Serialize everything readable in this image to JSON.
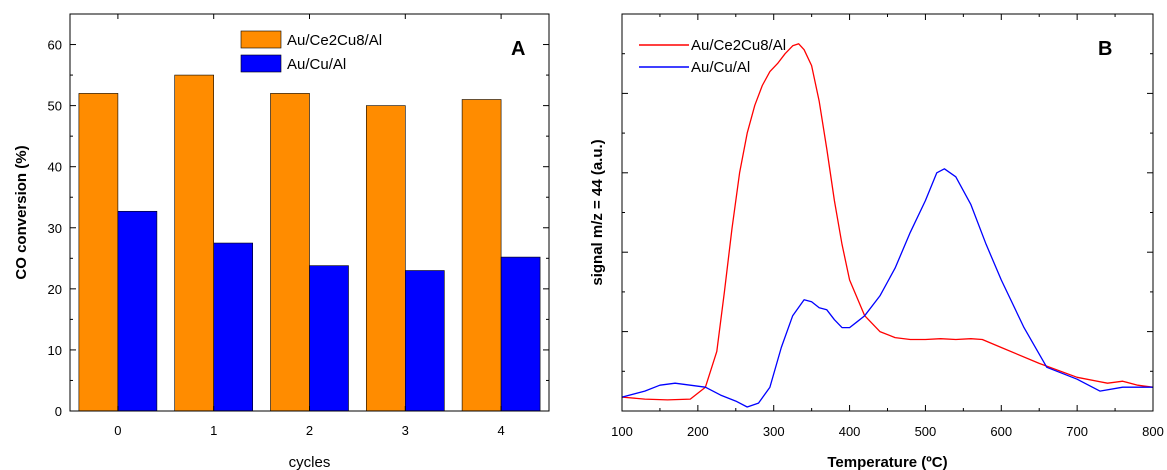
{
  "chart_data": [
    {
      "type": "bar",
      "panel_label": "A",
      "xlabel": "cycles",
      "ylabel": "CO conversion (%)",
      "categories": [
        "0",
        "1",
        "2",
        "3",
        "4"
      ],
      "ylim": [
        0,
        65
      ],
      "yticks": [
        "0",
        "10",
        "20",
        "30",
        "40",
        "50",
        "60"
      ],
      "legend_position": "top-center",
      "series": [
        {
          "name": "Au/Ce2Cu8/Al",
          "color": "#ff8c00",
          "values": [
            52,
            55,
            52,
            50,
            51
          ]
        },
        {
          "name": "Au/Cu/Al",
          "color": "#0000ff",
          "values": [
            32.7,
            27.5,
            23.8,
            23,
            25.2
          ]
        }
      ]
    },
    {
      "type": "line",
      "panel_label": "B",
      "xlabel": "Temperature (ºC)",
      "ylabel": "signal m/z = 44 (a.u.)",
      "xlim": [
        100,
        800
      ],
      "xticks": [
        "100",
        "200",
        "300",
        "400",
        "500",
        "600",
        "700",
        "800"
      ],
      "ylim": [
        0,
        1
      ],
      "y_tick_labels_shown": false,
      "legend_position": "top-left",
      "series": [
        {
          "name": "Au/Ce2Cu8/Al",
          "color": "#ff0000",
          "x": [
            100,
            130,
            160,
            190,
            210,
            225,
            235,
            245,
            255,
            265,
            275,
            285,
            295,
            305,
            315,
            325,
            333,
            340,
            350,
            360,
            370,
            380,
            390,
            400,
            420,
            440,
            460,
            480,
            500,
            520,
            540,
            560,
            575,
            600,
            650,
            700,
            740,
            760,
            780,
            800
          ],
          "y": [
            0.035,
            0.03,
            0.028,
            0.03,
            0.06,
            0.15,
            0.3,
            0.46,
            0.6,
            0.7,
            0.77,
            0.82,
            0.855,
            0.875,
            0.9,
            0.92,
            0.925,
            0.91,
            0.87,
            0.78,
            0.66,
            0.53,
            0.42,
            0.33,
            0.24,
            0.2,
            0.185,
            0.18,
            0.18,
            0.182,
            0.18,
            0.182,
            0.18,
            0.16,
            0.12,
            0.085,
            0.07,
            0.075,
            0.065,
            0.06
          ]
        },
        {
          "name": "Au/Cu/Al",
          "color": "#0000ff",
          "x": [
            100,
            130,
            150,
            170,
            190,
            210,
            230,
            250,
            265,
            280,
            295,
            310,
            325,
            340,
            350,
            360,
            370,
            380,
            390,
            400,
            410,
            420,
            440,
            460,
            480,
            500,
            515,
            525,
            540,
            560,
            580,
            600,
            630,
            660,
            700,
            730,
            760,
            800
          ],
          "y": [
            0.035,
            0.05,
            0.065,
            0.07,
            0.065,
            0.06,
            0.04,
            0.025,
            0.01,
            0.02,
            0.06,
            0.16,
            0.24,
            0.28,
            0.275,
            0.26,
            0.255,
            0.23,
            0.21,
            0.21,
            0.225,
            0.24,
            0.29,
            0.36,
            0.45,
            0.53,
            0.6,
            0.61,
            0.59,
            0.52,
            0.42,
            0.33,
            0.21,
            0.11,
            0.08,
            0.05,
            0.06,
            0.06
          ]
        }
      ]
    }
  ]
}
